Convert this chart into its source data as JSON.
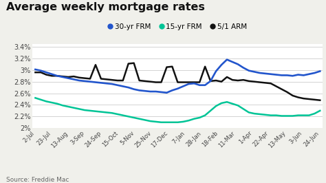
{
  "title": "Average weekly mortgage rates",
  "source": "Source: Freddie Mac",
  "legend": [
    "30-yr FRM",
    "15-yr FRM",
    "5/1 ARM"
  ],
  "legend_colors": [
    "#2255cc",
    "#00c496",
    "#111111"
  ],
  "x_labels": [
    "2-Jul",
    "23-Jul",
    "13-Aug",
    "3-Sep",
    "24-Sep",
    "15-Oct",
    "5-Nov",
    "25-Nov",
    "17-Dec",
    "7-Jan",
    "28-Jan",
    "18-Feb",
    "11-Mar",
    "1-Apr",
    "22-Apr",
    "13-May",
    "3-Jun",
    "24-Jun"
  ],
  "ylim": [
    2.0,
    3.45
  ],
  "yticks": [
    2.0,
    2.2,
    2.4,
    2.6,
    2.8,
    3.0,
    3.2,
    3.4
  ],
  "ytick_labels": [
    "2%",
    "2.2%",
    "2.4%",
    "2.6%",
    "2.8%",
    "3%",
    "3.2%",
    "3.4%"
  ],
  "bg_color": "#f0f0eb",
  "plot_bg": "#ffffff",
  "grid_color": "#cccccc",
  "line_30": [
    3.01,
    2.99,
    2.96,
    2.93,
    2.9,
    2.88,
    2.86,
    2.84,
    2.82,
    2.81,
    2.8,
    2.79,
    2.78,
    2.77,
    2.76,
    2.74,
    2.72,
    2.7,
    2.67,
    2.65,
    2.64,
    2.63,
    2.63,
    2.62,
    2.61,
    2.65,
    2.68,
    2.72,
    2.76,
    2.77,
    2.74,
    2.74,
    2.81,
    2.98,
    3.09,
    3.18,
    3.14,
    3.1,
    3.04,
    2.99,
    2.97,
    2.95,
    2.94,
    2.93,
    2.92,
    2.91,
    2.91,
    2.9,
    2.92,
    2.91,
    2.93,
    2.95,
    2.98
  ],
  "line_15": [
    2.52,
    2.49,
    2.46,
    2.44,
    2.42,
    2.39,
    2.37,
    2.35,
    2.33,
    2.31,
    2.3,
    2.29,
    2.28,
    2.27,
    2.26,
    2.24,
    2.22,
    2.2,
    2.18,
    2.16,
    2.14,
    2.12,
    2.11,
    2.1,
    2.1,
    2.1,
    2.1,
    2.11,
    2.13,
    2.16,
    2.18,
    2.22,
    2.3,
    2.38,
    2.43,
    2.45,
    2.42,
    2.39,
    2.33,
    2.27,
    2.25,
    2.24,
    2.23,
    2.22,
    2.22,
    2.21,
    2.21,
    2.21,
    2.22,
    2.22,
    2.22,
    2.25,
    2.3
  ],
  "line_arm": [
    2.96,
    2.96,
    2.92,
    2.9,
    2.9,
    2.89,
    2.88,
    2.89,
    2.87,
    2.86,
    2.85,
    3.09,
    2.85,
    2.84,
    2.83,
    2.82,
    2.82,
    3.11,
    3.12,
    2.82,
    2.81,
    2.8,
    2.79,
    2.79,
    3.05,
    3.06,
    2.79,
    2.79,
    2.79,
    2.79,
    2.79,
    3.06,
    2.81,
    2.82,
    2.8,
    2.88,
    2.83,
    2.82,
    2.83,
    2.81,
    2.8,
    2.79,
    2.78,
    2.77,
    2.72,
    2.67,
    2.62,
    2.56,
    2.53,
    2.51,
    2.5,
    2.49,
    2.48
  ]
}
